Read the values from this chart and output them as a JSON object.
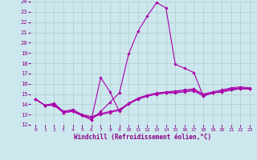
{
  "xlabel": "Windchill (Refroidissement éolien,°C)",
  "background_color": "#cce8ee",
  "grid_color": "#b0cccc",
  "line_color": "#aa00aa",
  "xlim": [
    -0.5,
    23.5
  ],
  "ylim": [
    12,
    24
  ],
  "xticks": [
    0,
    1,
    2,
    3,
    4,
    5,
    6,
    7,
    8,
    9,
    10,
    11,
    12,
    13,
    14,
    15,
    16,
    17,
    18,
    19,
    20,
    21,
    22,
    23
  ],
  "yticks": [
    12,
    13,
    14,
    15,
    16,
    17,
    18,
    19,
    20,
    21,
    22,
    23,
    24
  ],
  "series": [
    [
      14.5,
      13.9,
      13.9,
      13.2,
      13.3,
      12.9,
      12.5,
      16.6,
      15.2,
      13.3,
      14.1,
      14.5,
      14.8,
      15.0,
      15.1,
      15.1,
      15.2,
      15.3,
      14.8,
      15.1,
      15.2,
      15.4,
      15.5,
      15.5
    ],
    [
      14.5,
      13.9,
      13.9,
      13.2,
      13.3,
      12.9,
      12.5,
      13.3,
      14.2,
      15.1,
      18.9,
      21.1,
      22.6,
      23.9,
      23.4,
      17.9,
      17.5,
      17.1,
      14.8,
      15.1,
      15.2,
      15.4,
      15.5,
      15.5
    ],
    [
      14.5,
      13.9,
      14.0,
      13.2,
      13.4,
      12.9,
      12.7,
      13.0,
      13.2,
      13.4,
      14.0,
      14.5,
      14.8,
      15.0,
      15.1,
      15.2,
      15.3,
      15.4,
      14.9,
      15.1,
      15.3,
      15.5,
      15.6,
      15.5
    ],
    [
      14.5,
      13.9,
      14.1,
      13.3,
      13.5,
      13.0,
      12.8,
      13.1,
      13.3,
      13.5,
      14.1,
      14.6,
      14.9,
      15.1,
      15.2,
      15.3,
      15.4,
      15.5,
      15.0,
      15.2,
      15.4,
      15.6,
      15.7,
      15.6
    ]
  ]
}
